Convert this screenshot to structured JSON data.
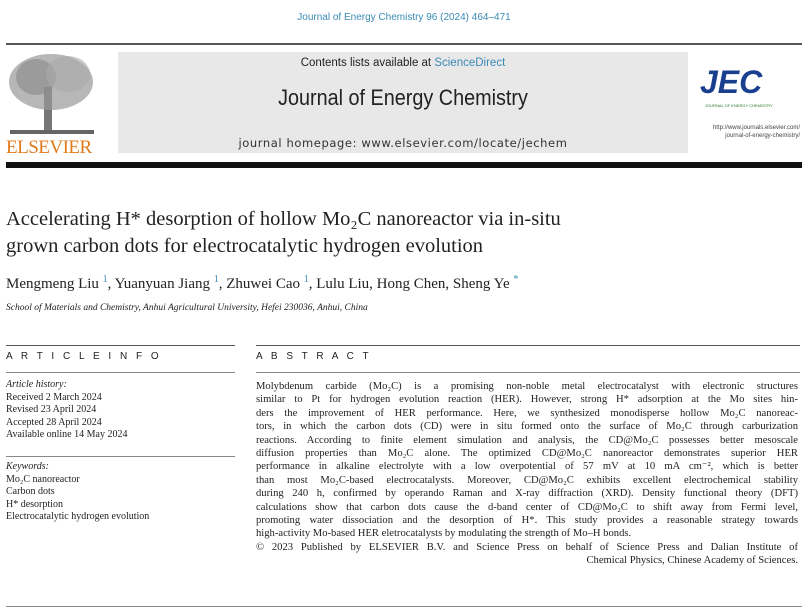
{
  "citation": "Journal of Energy Chemistry 96 (2024) 464–471",
  "header": {
    "contents_prefix": "Contents lists available at ",
    "contents_link": "ScienceDirect",
    "journal_title": "Journal of Energy Chemistry",
    "homepage": "journal homepage: www.elsevier.com/locate/jechem",
    "publisher_logo": "ELSEVIER",
    "journal_logo": "JEC",
    "journal_logo_sub": "JOURNAL OF ENERGY CHEMISTRY",
    "journal_url_1": "http://www.journals.elsevier.com/",
    "journal_url_2": "journal-of-energy-chemistry/"
  },
  "colors": {
    "link": "#3a8ab5",
    "elsevier_orange": "#e07a1a",
    "jec_blue": "#1a3f8f"
  },
  "article": {
    "title_line1": "Accelerating H* desorption of hollow Mo₂C nanoreactor via in-situ",
    "title_line2": "grown carbon dots for electrocatalytic hydrogen evolution",
    "authors": [
      {
        "name": "Mengmeng Liu",
        "mark": "1"
      },
      {
        "name": "Yuanyuan Jiang",
        "mark": "1"
      },
      {
        "name": "Zhuwei Cao",
        "mark": "1"
      },
      {
        "name": "Lulu Liu",
        "mark": ""
      },
      {
        "name": "Hong Chen",
        "mark": ""
      },
      {
        "name": "Sheng Ye",
        "mark": "*"
      }
    ],
    "affiliation": "School of Materials and Chemistry, Anhui Agricultural University, Hefei 230036, Anhui, China"
  },
  "article_info": {
    "heading": "A R T I C L E   I N F O",
    "history_label": "Article history:",
    "history": [
      "Received 2 March 2024",
      "Revised 23 April 2024",
      "Accepted 28 April 2024",
      "Available online 14 May 2024"
    ],
    "keywords_label": "Keywords:",
    "keywords": [
      "Mo₂C nanoreactor",
      "Carbon dots",
      "H* desorption",
      "Electrocatalytic hydrogen evolution"
    ]
  },
  "abstract": {
    "heading": "A B S T R A C T",
    "lines": [
      "Molybdenum carbide (Mo₂C) is a promising non-noble metal electrocatalyst with electronic structures",
      "similar to Pt for hydrogen evolution reaction (HER). However, strong H* adsorption at the Mo sites hin-",
      "ders the improvement of HER performance. Here, we synthesized monodisperse hollow Mo₂C nanoreac-",
      "tors, in which the carbon dots (CD) were in situ formed onto the surface of Mo₂C through carburization",
      "reactions. According to finite element simulation and analysis, the CD@Mo₂C possesses better mesoscale",
      "diffusion properties than Mo₂C alone. The optimized CD@Mo₂C nanoreactor demonstrates superior HER",
      "performance in alkaline electrolyte with a low overpotential of 57 mV at 10 mA cm⁻², which is better",
      "than most Mo₂C-based electrocatalysts. Moreover, CD@Mo₂C exhibits excellent electrochemical stability",
      "during 240 h, confirmed by operando Raman and X-ray diffraction (XRD). Density functional theory (DFT)",
      "calculations show that carbon dots cause the d-band center of CD@Mo₂C to shift away from Fermi level,",
      "promoting water dissociation and the desorption of H*. This study provides a reasonable strategy towards",
      "high-activity Mo-based HER eletrocatalysts by modulating the strength of Mo–H bonds.",
      "© 2023 Published by ELSEVIER B.V. and Science Press on behalf of Science Press and Dalian Institute of",
      "Chemical Physics, Chinese Academy of Sciences."
    ]
  }
}
